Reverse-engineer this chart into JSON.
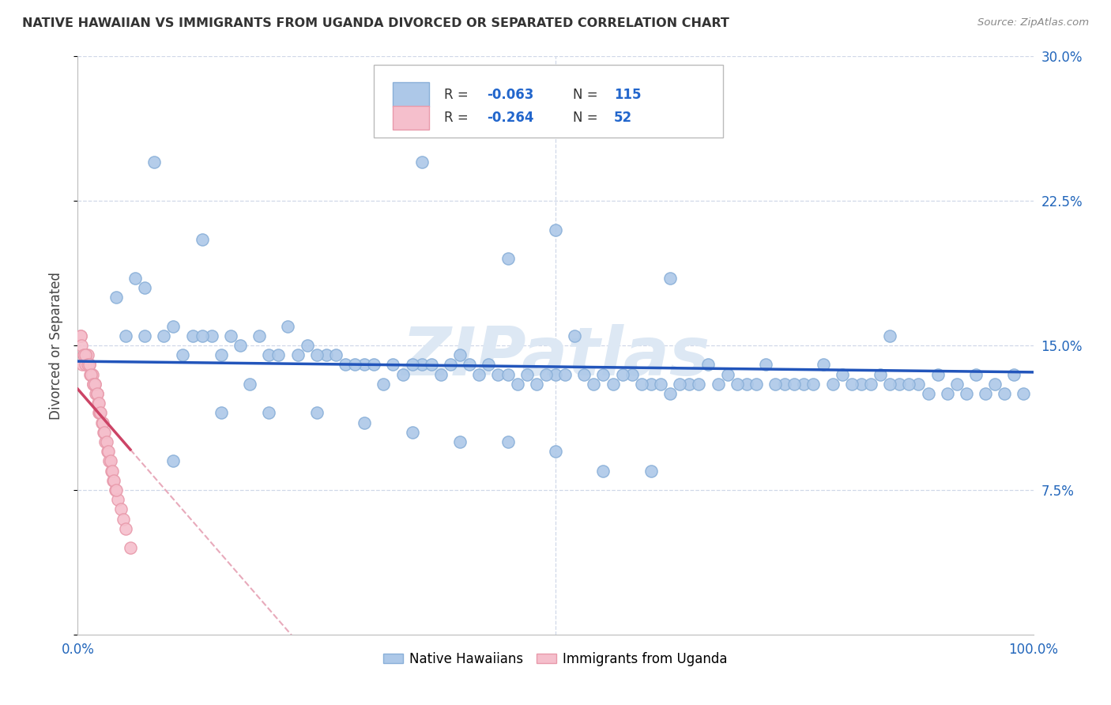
{
  "title": "NATIVE HAWAIIAN VS IMMIGRANTS FROM UGANDA DIVORCED OR SEPARATED CORRELATION CHART",
  "source_text": "Source: ZipAtlas.com",
  "ylabel": "Divorced or Separated",
  "xmin": 0.0,
  "xmax": 1.0,
  "ymin": 0.0,
  "ymax": 0.3,
  "yticks": [
    0.0,
    0.075,
    0.15,
    0.225,
    0.3
  ],
  "right_ytick_labels": [
    "",
    "7.5%",
    "15.0%",
    "22.5%",
    "30.0%"
  ],
  "xticks": [
    0.0,
    1.0
  ],
  "xtick_labels": [
    "0.0%",
    "100.0%"
  ],
  "blue_R": -0.063,
  "blue_N": 115,
  "pink_R": -0.264,
  "pink_N": 52,
  "blue_label": "Native Hawaiians",
  "pink_label": "Immigrants from Uganda",
  "blue_color": "#adc8e8",
  "blue_edge_color": "#89afd8",
  "pink_color": "#f5bfcc",
  "pink_edge_color": "#e899aa",
  "blue_line_color": "#2255bb",
  "pink_line_color": "#cc4466",
  "pink_dash_color": "#e8aabb",
  "watermark_color": "#dde8f4",
  "background_color": "#ffffff",
  "grid_color": "#d0d8e8",
  "blue_x": [
    0.08,
    0.13,
    0.36,
    0.45,
    0.5,
    0.62,
    0.85,
    0.04,
    0.06,
    0.07,
    0.1,
    0.12,
    0.14,
    0.16,
    0.18,
    0.2,
    0.22,
    0.24,
    0.26,
    0.28,
    0.3,
    0.32,
    0.34,
    0.36,
    0.38,
    0.4,
    0.42,
    0.44,
    0.46,
    0.48,
    0.5,
    0.52,
    0.54,
    0.56,
    0.58,
    0.6,
    0.62,
    0.64,
    0.66,
    0.68,
    0.7,
    0.72,
    0.74,
    0.76,
    0.78,
    0.8,
    0.82,
    0.84,
    0.86,
    0.88,
    0.9,
    0.92,
    0.94,
    0.96,
    0.98,
    0.05,
    0.07,
    0.09,
    0.11,
    0.13,
    0.15,
    0.17,
    0.19,
    0.21,
    0.23,
    0.25,
    0.27,
    0.29,
    0.31,
    0.33,
    0.35,
    0.37,
    0.39,
    0.41,
    0.43,
    0.45,
    0.47,
    0.49,
    0.51,
    0.53,
    0.55,
    0.57,
    0.59,
    0.61,
    0.63,
    0.65,
    0.67,
    0.69,
    0.71,
    0.73,
    0.75,
    0.77,
    0.79,
    0.81,
    0.83,
    0.85,
    0.87,
    0.89,
    0.91,
    0.93,
    0.95,
    0.97,
    0.99,
    0.1,
    0.15,
    0.2,
    0.25,
    0.3,
    0.35,
    0.4,
    0.45,
    0.5,
    0.55,
    0.6
  ],
  "blue_y": [
    0.245,
    0.205,
    0.245,
    0.195,
    0.21,
    0.185,
    0.155,
    0.175,
    0.185,
    0.18,
    0.16,
    0.155,
    0.155,
    0.155,
    0.13,
    0.145,
    0.16,
    0.15,
    0.145,
    0.14,
    0.14,
    0.13,
    0.135,
    0.14,
    0.135,
    0.145,
    0.135,
    0.135,
    0.13,
    0.13,
    0.135,
    0.155,
    0.13,
    0.13,
    0.135,
    0.13,
    0.125,
    0.13,
    0.14,
    0.135,
    0.13,
    0.14,
    0.13,
    0.13,
    0.14,
    0.135,
    0.13,
    0.135,
    0.13,
    0.13,
    0.135,
    0.13,
    0.135,
    0.13,
    0.135,
    0.155,
    0.155,
    0.155,
    0.145,
    0.155,
    0.145,
    0.15,
    0.155,
    0.145,
    0.145,
    0.145,
    0.145,
    0.14,
    0.14,
    0.14,
    0.14,
    0.14,
    0.14,
    0.14,
    0.14,
    0.135,
    0.135,
    0.135,
    0.135,
    0.135,
    0.135,
    0.135,
    0.13,
    0.13,
    0.13,
    0.13,
    0.13,
    0.13,
    0.13,
    0.13,
    0.13,
    0.13,
    0.13,
    0.13,
    0.13,
    0.13,
    0.13,
    0.125,
    0.125,
    0.125,
    0.125,
    0.125,
    0.125,
    0.09,
    0.115,
    0.115,
    0.115,
    0.11,
    0.105,
    0.1,
    0.1,
    0.095,
    0.085,
    0.085
  ],
  "pink_x": [
    0.003,
    0.005,
    0.006,
    0.008,
    0.009,
    0.01,
    0.011,
    0.012,
    0.013,
    0.014,
    0.015,
    0.016,
    0.017,
    0.018,
    0.019,
    0.02,
    0.021,
    0.022,
    0.023,
    0.025,
    0.027,
    0.029,
    0.031,
    0.033,
    0.035,
    0.037,
    0.039,
    0.042,
    0.045,
    0.048,
    0.05,
    0.055,
    0.003,
    0.004,
    0.006,
    0.008,
    0.01,
    0.012,
    0.014,
    0.016,
    0.018,
    0.02,
    0.022,
    0.024,
    0.026,
    0.028,
    0.03,
    0.032,
    0.034,
    0.036,
    0.038,
    0.04
  ],
  "pink_y": [
    0.155,
    0.14,
    0.145,
    0.14,
    0.145,
    0.145,
    0.14,
    0.14,
    0.135,
    0.135,
    0.135,
    0.13,
    0.13,
    0.13,
    0.125,
    0.125,
    0.12,
    0.115,
    0.115,
    0.11,
    0.105,
    0.1,
    0.095,
    0.09,
    0.085,
    0.08,
    0.075,
    0.07,
    0.065,
    0.06,
    0.055,
    0.045,
    0.155,
    0.15,
    0.145,
    0.145,
    0.14,
    0.14,
    0.135,
    0.13,
    0.13,
    0.125,
    0.12,
    0.115,
    0.11,
    0.105,
    0.1,
    0.095,
    0.09,
    0.085,
    0.08,
    0.075
  ]
}
